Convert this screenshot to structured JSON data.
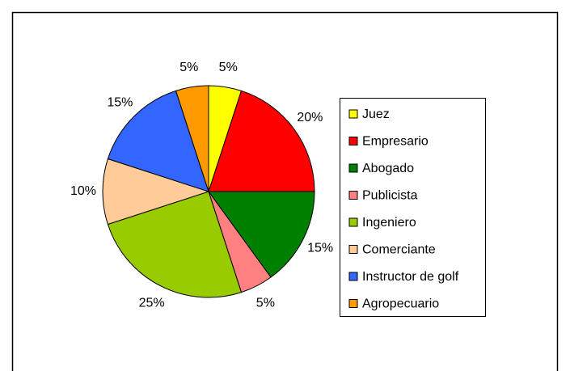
{
  "chart_data": {
    "type": "pie",
    "categories": [
      "Juez",
      "Empresario",
      "Abogado",
      "Publicista",
      "Ingeniero",
      "Comerciante",
      "Instructor de golf",
      "Agropecuario"
    ],
    "values": [
      5,
      20,
      15,
      5,
      25,
      10,
      15,
      5
    ],
    "value_labels": [
      "5%",
      "20%",
      "15%",
      "5%",
      "25%",
      "10%",
      "15%",
      "5%"
    ],
    "colors": [
      "#ffff00",
      "#ff0000",
      "#008000",
      "#ff8080",
      "#99cc00",
      "#ffcc99",
      "#3366ff",
      "#ff9900"
    ],
    "legend": "right"
  }
}
